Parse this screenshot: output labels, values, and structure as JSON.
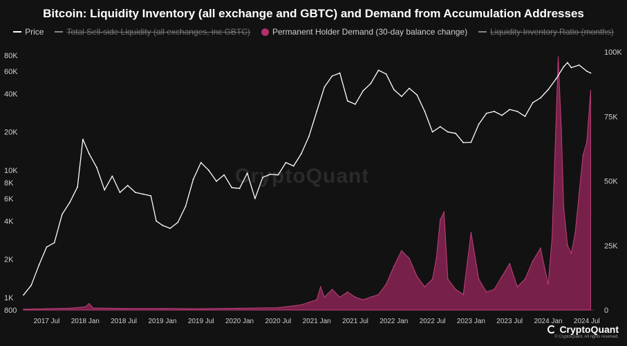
{
  "title": "Bitcoin: Liquidity Inventory (all exchange and GBTC) and Demand from Accumulation Addresses",
  "legend": [
    {
      "label": "Price",
      "color": "#ffffff",
      "style": "line",
      "active": true
    },
    {
      "label": "Total Sell-side Liquidity (all exchanges, inc GBTC)",
      "color": "#888888",
      "style": "line",
      "active": false
    },
    {
      "label": "Permanent Holder Demand (30-day balance change)",
      "color": "#b0306b",
      "style": "dot",
      "active": true
    },
    {
      "label": "Liquidity Inventory Ratio (months)",
      "color": "#888888",
      "style": "line",
      "active": false
    }
  ],
  "watermark": "CryptoQuant",
  "brand": {
    "name": "CryptoQuant",
    "rights": "© CryptoQuant. All rights reserved."
  },
  "chart_data": {
    "type": "line",
    "title": "Bitcoin: Liquidity Inventory (all exchange and GBTC) and Demand from Accumulation Addresses",
    "x_ticks": [
      "2017 Jul",
      "2018 Jan",
      "2018 Jul",
      "2019 Jan",
      "2019 Jul",
      "2020 Jan",
      "2020 Jul",
      "2021 Jan",
      "2021 Jul",
      "2022 Jan",
      "2022 Jul",
      "2023 Jan",
      "2023 Jul",
      "2024 Jan",
      "2024 Jul"
    ],
    "x_range": [
      2017.2,
      2024.6
    ],
    "y_left": {
      "scale": "log",
      "range": [
        800,
        85000
      ],
      "ticks": [
        {
          "label": "80K",
          "value": 80000
        },
        {
          "label": "60K",
          "value": 60000
        },
        {
          "label": "40K",
          "value": 40000
        },
        {
          "label": "20K",
          "value": 20000
        },
        {
          "label": "10K",
          "value": 10000
        },
        {
          "label": "8K",
          "value": 8000
        },
        {
          "label": "6K",
          "value": 6000
        },
        {
          "label": "4K",
          "value": 4000
        },
        {
          "label": "2K",
          "value": 2000
        },
        {
          "label": "1K",
          "value": 1000
        },
        {
          "label": "800",
          "value": 800
        }
      ]
    },
    "y_right": {
      "scale": "linear",
      "range": [
        0,
        100000
      ],
      "ticks": [
        {
          "label": "100K",
          "value": 100000
        },
        {
          "label": "75K",
          "value": 75000
        },
        {
          "label": "50K",
          "value": 50000
        },
        {
          "label": "25K",
          "value": 25000
        },
        {
          "label": "0",
          "value": 0
        }
      ]
    },
    "series": [
      {
        "name": "Price",
        "axis": "left",
        "color": "#ffffff",
        "x": [
          2017.2,
          2017.3,
          2017.4,
          2017.5,
          2017.6,
          2017.7,
          2017.8,
          2017.9,
          2017.97,
          2018.05,
          2018.15,
          2018.25,
          2018.35,
          2018.45,
          2018.55,
          2018.65,
          2018.75,
          2018.85,
          2018.92,
          2019.0,
          2019.1,
          2019.2,
          2019.3,
          2019.4,
          2019.5,
          2019.6,
          2019.7,
          2019.8,
          2019.9,
          2020.0,
          2020.1,
          2020.2,
          2020.3,
          2020.4,
          2020.5,
          2020.6,
          2020.7,
          2020.8,
          2020.9,
          2021.0,
          2021.1,
          2021.2,
          2021.3,
          2021.4,
          2021.5,
          2021.6,
          2021.7,
          2021.8,
          2021.9,
          2022.0,
          2022.1,
          2022.2,
          2022.3,
          2022.4,
          2022.5,
          2022.6,
          2022.7,
          2022.8,
          2022.9,
          2023.0,
          2023.1,
          2023.2,
          2023.3,
          2023.4,
          2023.5,
          2023.6,
          2023.7,
          2023.8,
          2023.9,
          2024.0,
          2024.1,
          2024.2,
          2024.25,
          2024.3,
          2024.4,
          2024.5,
          2024.55
        ],
        "values": [
          1050,
          1250,
          1800,
          2500,
          2700,
          4500,
          5600,
          7400,
          17500,
          13500,
          10500,
          7000,
          9000,
          6700,
          7600,
          6700,
          6500,
          6300,
          4000,
          3700,
          3500,
          3900,
          5200,
          8500,
          11500,
          10000,
          8200,
          9200,
          7300,
          7200,
          9500,
          6000,
          8800,
          9300,
          9200,
          11500,
          10800,
          13500,
          18500,
          29000,
          45000,
          55000,
          58000,
          35000,
          33000,
          42000,
          48000,
          61000,
          57000,
          43000,
          38000,
          44000,
          39000,
          29000,
          20000,
          22000,
          20000,
          19500,
          16500,
          16600,
          23000,
          28000,
          29000,
          27000,
          30000,
          29000,
          26500,
          34000,
          37000,
          43000,
          52000,
          65000,
          70000,
          64000,
          67000,
          60000,
          58000
        ]
      },
      {
        "name": "Permanent Holder Demand (30-day balance change)",
        "axis": "right",
        "color": "#b0306b",
        "x": [
          2017.2,
          2017.5,
          2017.8,
          2018.0,
          2018.05,
          2018.1,
          2018.5,
          2019.0,
          2019.5,
          2020.0,
          2020.5,
          2020.8,
          2020.9,
          2021.0,
          2021.05,
          2021.1,
          2021.2,
          2021.3,
          2021.4,
          2021.5,
          2021.6,
          2021.7,
          2021.8,
          2021.9,
          2022.0,
          2022.1,
          2022.2,
          2022.3,
          2022.4,
          2022.5,
          2022.55,
          2022.6,
          2022.65,
          2022.7,
          2022.8,
          2022.9,
          2022.95,
          2023.0,
          2023.1,
          2023.2,
          2023.3,
          2023.4,
          2023.5,
          2023.6,
          2023.7,
          2023.8,
          2023.9,
          2024.0,
          2024.05,
          2024.1,
          2024.13,
          2024.17,
          2024.2,
          2024.25,
          2024.3,
          2024.35,
          2024.4,
          2024.45,
          2024.5,
          2024.55
        ],
        "values": [
          300,
          500,
          700,
          1200,
          2500,
          800,
          600,
          600,
          500,
          700,
          900,
          2000,
          3000,
          4000,
          9000,
          5000,
          8000,
          5000,
          7000,
          5000,
          4000,
          5000,
          6000,
          10000,
          17000,
          23000,
          20000,
          13000,
          9000,
          12000,
          20000,
          35000,
          38000,
          12000,
          8000,
          6000,
          18000,
          30000,
          12000,
          7000,
          8000,
          13000,
          18000,
          9000,
          12000,
          19000,
          24000,
          10000,
          28000,
          72000,
          98000,
          70000,
          40000,
          25000,
          22000,
          30000,
          45000,
          60000,
          65000,
          85000
        ]
      }
    ]
  }
}
